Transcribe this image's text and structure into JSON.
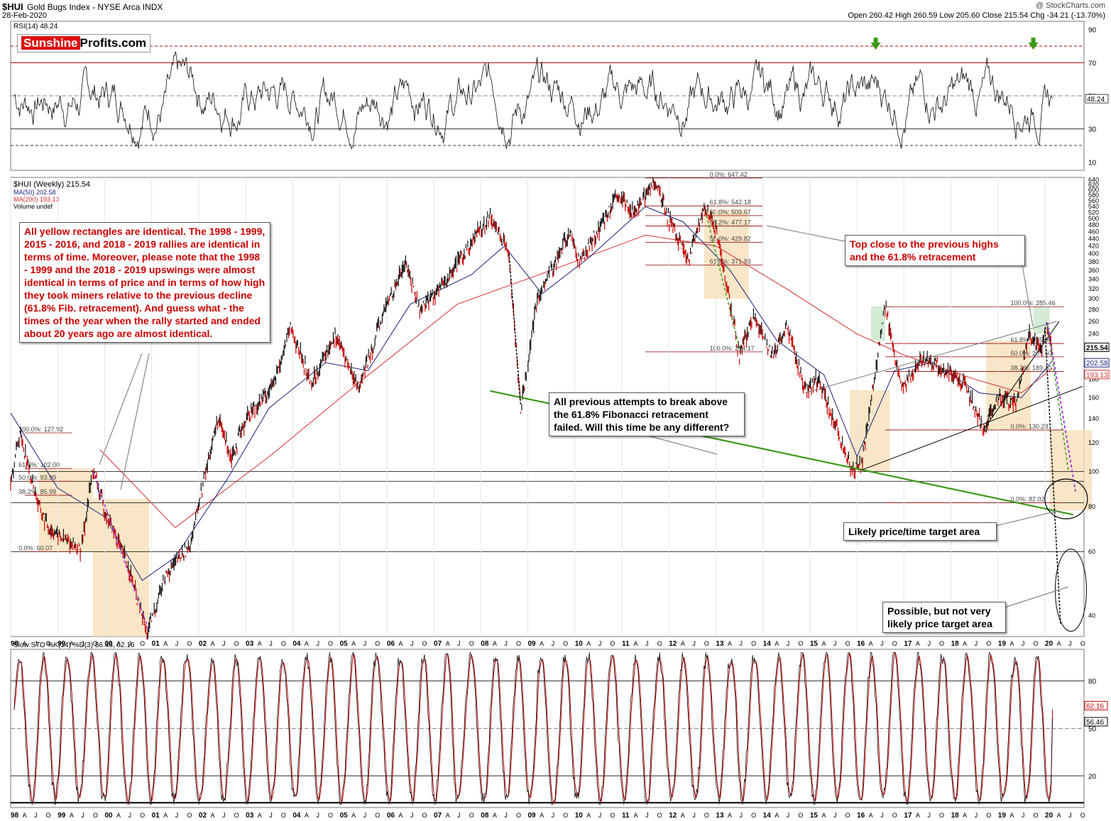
{
  "header": {
    "title": "$HUI",
    "subtitle": "Gold Bugs Index - NYSE Arca INDX",
    "date": "28-Feb-2020",
    "copyright": "@ StockCharts.com",
    "ohlc": "Open 260.42  High 260.59  Low 205.60  Close 215.54  Chg -34.21 (-13.70%)"
  },
  "logo": {
    "part1": "Sunshine",
    "part2": "Profits.com"
  },
  "annotations": {
    "yellow_note": "All yellow rectangles are identical. The 1998 - 1999, 2015 - 2016, and 2018 - 2019 rallies are identical in terms of time. Moreover, please note that the 1998 - 1999 and the 2018 - 2019 upswings were almost identical in terms of price and in terms of how high they took miners relative to the previous decline (61.8% Fib. retracement). And guess what - the times of the year when the rally started and ended about 20 years ago are almost identical.",
    "top_close": "Top close to the previous highs\nand the 61.8% retracement",
    "previous_attempts": "All previous attempts to break above\nthe 61.8% Fibonacci retracement\nfailed. Will this time be any different?",
    "likely_target": "Likely price/time target area",
    "possible_target": "Possible, but not very\nlikely price target area"
  },
  "colors": {
    "price_up": "#111111",
    "price_down": "#cc0000",
    "ma50": "#1a237e",
    "ma200": "#d32f2f",
    "yellow_box": "#f5deb3",
    "green_box": "#c8e6c9",
    "fib_line": "#8b0000",
    "support_green": "#3c9a1a",
    "purple_dash": "#9b30d9"
  },
  "chart_data": [
    {
      "type": "line",
      "title": "RSI(14) 48.24",
      "series": [
        {
          "name": "RSI(14)",
          "last": 48.24
        }
      ],
      "y_ticks": [
        10,
        30,
        50,
        70,
        90
      ],
      "ylim": [
        5,
        95
      ],
      "reference_lines": [
        80,
        70,
        30,
        20
      ],
      "last_label": "48.24",
      "markers": [
        "down-arrow at 2016 peak",
        "down-arrow at 2019 peak"
      ]
    },
    {
      "type": "line",
      "title": "$HUI (Weekly) 215.54",
      "legend": [
        "$HUI (Weekly) 215.54",
        "MA(50) 202.58",
        "MA(200) 193.13",
        "Volume undef"
      ],
      "x_labels": [
        "98",
        "A",
        "J",
        "O",
        "99",
        "A",
        "J",
        "O",
        "00",
        "A",
        "J",
        "O",
        "01",
        "A",
        "J",
        "O",
        "02",
        "A",
        "J",
        "O",
        "03",
        "A",
        "J",
        "O",
        "04",
        "A",
        "J",
        "O",
        "05",
        "A",
        "J",
        "O",
        "06",
        "A",
        "J",
        "O",
        "07",
        "A",
        "J",
        "O",
        "08",
        "A",
        "J",
        "O",
        "09",
        "A",
        "J",
        "O",
        "10",
        "A",
        "J",
        "O",
        "11",
        "A",
        "J",
        "O",
        "12",
        "A",
        "J",
        "O",
        "13",
        "A",
        "J",
        "O",
        "14",
        "A",
        "J",
        "O",
        "15",
        "A",
        "J",
        "O",
        "16",
        "A",
        "J",
        "O",
        "17",
        "A",
        "J",
        "O",
        "18",
        "A",
        "J",
        "O",
        "19",
        "A",
        "J",
        "O",
        "20",
        "A",
        "J",
        "O"
      ],
      "y_ticks": [
        40,
        60,
        80,
        100,
        120,
        140,
        160,
        180,
        200,
        220,
        240,
        260,
        280,
        300,
        320,
        340,
        360,
        380,
        400,
        420,
        440,
        460,
        480,
        500,
        520,
        540,
        560,
        580,
        600,
        620,
        640
      ],
      "y_scale": "log",
      "ylim": [
        35,
        650
      ],
      "price_path": [
        {
          "x": 1998.0,
          "y": 95
        },
        {
          "x": 1998.2,
          "y": 128
        },
        {
          "x": 1998.6,
          "y": 80
        },
        {
          "x": 1998.8,
          "y": 70
        },
        {
          "x": 1999.2,
          "y": 64
        },
        {
          "x": 1999.5,
          "y": 61
        },
        {
          "x": 1999.75,
          "y": 102
        },
        {
          "x": 2000.0,
          "y": 78
        },
        {
          "x": 2000.5,
          "y": 55
        },
        {
          "x": 2000.9,
          "y": 35.5
        },
        {
          "x": 2001.3,
          "y": 52
        },
        {
          "x": 2001.8,
          "y": 62
        },
        {
          "x": 2002.4,
          "y": 140
        },
        {
          "x": 2002.7,
          "y": 110
        },
        {
          "x": 2003.0,
          "y": 140
        },
        {
          "x": 2003.6,
          "y": 175
        },
        {
          "x": 2003.95,
          "y": 250
        },
        {
          "x": 2004.4,
          "y": 175
        },
        {
          "x": 2004.9,
          "y": 240
        },
        {
          "x": 2005.4,
          "y": 170
        },
        {
          "x": 2006.0,
          "y": 290
        },
        {
          "x": 2006.4,
          "y": 380
        },
        {
          "x": 2006.7,
          "y": 280
        },
        {
          "x": 2007.3,
          "y": 340
        },
        {
          "x": 2007.8,
          "y": 430
        },
        {
          "x": 2008.2,
          "y": 510
        },
        {
          "x": 2008.6,
          "y": 400
        },
        {
          "x": 2008.85,
          "y": 150
        },
        {
          "x": 2009.2,
          "y": 300
        },
        {
          "x": 2009.9,
          "y": 460
        },
        {
          "x": 2010.1,
          "y": 380
        },
        {
          "x": 2010.9,
          "y": 570
        },
        {
          "x": 2011.3,
          "y": 520
        },
        {
          "x": 2011.7,
          "y": 640
        },
        {
          "x": 2011.95,
          "y": 520
        },
        {
          "x": 2012.4,
          "y": 380
        },
        {
          "x": 2012.75,
          "y": 530
        },
        {
          "x": 2013.0,
          "y": 470
        },
        {
          "x": 2013.5,
          "y": 210
        },
        {
          "x": 2013.8,
          "y": 270
        },
        {
          "x": 2014.2,
          "y": 210
        },
        {
          "x": 2014.5,
          "y": 250
        },
        {
          "x": 2014.9,
          "y": 170
        },
        {
          "x": 2015.2,
          "y": 180
        },
        {
          "x": 2015.5,
          "y": 140
        },
        {
          "x": 2015.9,
          "y": 100
        },
        {
          "x": 2016.1,
          "y": 105
        },
        {
          "x": 2016.6,
          "y": 286
        },
        {
          "x": 2016.95,
          "y": 170
        },
        {
          "x": 2017.4,
          "y": 205
        },
        {
          "x": 2017.9,
          "y": 190
        },
        {
          "x": 2018.3,
          "y": 175
        },
        {
          "x": 2018.7,
          "y": 130
        },
        {
          "x": 2019.0,
          "y": 160
        },
        {
          "x": 2019.4,
          "y": 155
        },
        {
          "x": 2019.65,
          "y": 240
        },
        {
          "x": 2019.9,
          "y": 215
        },
        {
          "x": 2020.05,
          "y": 255
        },
        {
          "x": 2020.16,
          "y": 215.54
        }
      ],
      "ma50_path": [
        {
          "x": 1998.0,
          "y": 145
        },
        {
          "x": 1999.0,
          "y": 90
        },
        {
          "x": 2000.0,
          "y": 75
        },
        {
          "x": 2000.8,
          "y": 50
        },
        {
          "x": 2001.5,
          "y": 58
        },
        {
          "x": 2002.6,
          "y": 95
        },
        {
          "x": 2003.5,
          "y": 150
        },
        {
          "x": 2004.7,
          "y": 200
        },
        {
          "x": 2005.6,
          "y": 190
        },
        {
          "x": 2006.5,
          "y": 290
        },
        {
          "x": 2007.8,
          "y": 350
        },
        {
          "x": 2008.5,
          "y": 420
        },
        {
          "x": 2009.3,
          "y": 310
        },
        {
          "x": 2010.3,
          "y": 390
        },
        {
          "x": 2011.5,
          "y": 540
        },
        {
          "x": 2012.3,
          "y": 490
        },
        {
          "x": 2013.3,
          "y": 360
        },
        {
          "x": 2014.3,
          "y": 230
        },
        {
          "x": 2015.3,
          "y": 185
        },
        {
          "x": 2016.0,
          "y": 110
        },
        {
          "x": 2016.8,
          "y": 190
        },
        {
          "x": 2017.6,
          "y": 200
        },
        {
          "x": 2018.6,
          "y": 165
        },
        {
          "x": 2019.5,
          "y": 160
        },
        {
          "x": 2020.16,
          "y": 202.58
        }
      ],
      "ma200_path": [
        {
          "x": 1999.9,
          "y": 115
        },
        {
          "x": 2001.5,
          "y": 70
        },
        {
          "x": 2003.5,
          "y": 110
        },
        {
          "x": 2005.5,
          "y": 180
        },
        {
          "x": 2007.5,
          "y": 290
        },
        {
          "x": 2009.5,
          "y": 360
        },
        {
          "x": 2011.5,
          "y": 450
        },
        {
          "x": 2013.0,
          "y": 420
        },
        {
          "x": 2014.5,
          "y": 320
        },
        {
          "x": 2016.0,
          "y": 240
        },
        {
          "x": 2017.0,
          "y": 210
        },
        {
          "x": 2018.5,
          "y": 180
        },
        {
          "x": 2019.5,
          "y": 165
        },
        {
          "x": 2020.16,
          "y": 193.13
        }
      ],
      "price_labels": [
        {
          "label": "215.54",
          "y": 215.54,
          "kind": "price"
        },
        {
          "label": "202.58",
          "y": 202.58,
          "kind": "ma50"
        },
        {
          "label": "193.13",
          "y": 193.13,
          "kind": "ma200"
        }
      ],
      "fib_sets": [
        {
          "x0": 1998.3,
          "x1": 1999.3,
          "levels": [
            {
              "label": "100.0%: 127.92",
              "y": 127.92
            },
            {
              "label": "61.8%: 102.00",
              "y": 102.0
            },
            {
              "label": "50.0%: 93.99",
              "y": 93.99
            },
            {
              "label": "38.2%: 85.99",
              "y": 85.99
            },
            {
              "label": "0.0%: 60.07",
              "y": 60.07
            }
          ]
        },
        {
          "x0": 2011.5,
          "x1": 2014.0,
          "levels": [
            {
              "label": "0.0%: 647.42",
              "y": 647.42
            },
            {
              "label": "61.8%: 542.18",
              "y": 542.18
            },
            {
              "label": "50.0%: 509.67",
              "y": 509.67
            },
            {
              "label": "38.2%: 477.17",
              "y": 477.17
            },
            {
              "label": "50.0%: 429.82",
              "y": 429.82
            },
            {
              "label": "61.8%: 371.93",
              "y": 371.93
            },
            {
              "label": "100.0%: 214.17",
              "y": 214.17
            }
          ]
        },
        {
          "x0": 2016.6,
          "x1": 2020.4,
          "levels": [
            {
              "label": "100.0%: 285.46",
              "y": 285.46
            },
            {
              "label": "61.8%: 225.90",
              "y": 225.9
            },
            {
              "label": "50.0%: 207.50",
              "y": 207.5
            },
            {
              "label": "38.2%: 189.10",
              "y": 189.1
            },
            {
              "label": "0.0%: 130.28",
              "y": 130.28
            },
            {
              "label": "0.0%: 82.02",
              "y": 82.02
            }
          ]
        }
      ]
    },
    {
      "type": "line",
      "title": "Slow STO %K(14) %D(3) 56.46, 62.16",
      "series": [
        {
          "name": "%K(14)",
          "last": 56.46
        },
        {
          "name": "%D(3)",
          "last": 62.16
        }
      ],
      "y_ticks": [
        20,
        50,
        80
      ],
      "ylim": [
        0,
        100
      ],
      "last_labels": [
        "62.16",
        "56.46"
      ]
    }
  ]
}
